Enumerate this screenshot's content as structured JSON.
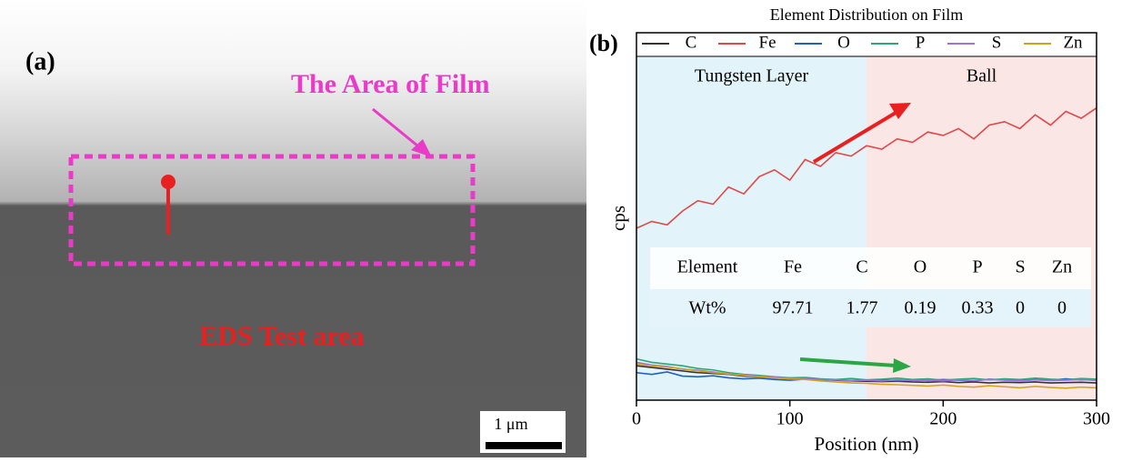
{
  "panel_a": {
    "label": "(a)",
    "film_label": "The Area of Film",
    "eds_label": "EDS Test area",
    "scale_bar": "1 μm"
  },
  "chart_data": {
    "type": "line",
    "panel_label": "(b)",
    "title": "Element Distribution on Film",
    "x_label": "Position (nm)",
    "y_label": "cps",
    "xlim": [
      0,
      300
    ],
    "ylim": [
      0,
      100
    ],
    "xticks": [
      0,
      100,
      200,
      300
    ],
    "regions": [
      {
        "label": "Tungsten Layer",
        "start": 0,
        "end": 150,
        "color": "#e2f3f9"
      },
      {
        "label": "Ball",
        "start": 150,
        "end": 300,
        "color": "#fbe6e6"
      }
    ],
    "x": [
      0,
      10,
      20,
      30,
      40,
      50,
      60,
      70,
      80,
      90,
      100,
      110,
      120,
      130,
      140,
      150,
      160,
      170,
      180,
      190,
      200,
      210,
      220,
      230,
      240,
      250,
      260,
      270,
      280,
      290,
      300
    ],
    "series": [
      {
        "name": "C",
        "color": "#333333",
        "values": [
          10,
          9.5,
          9,
          8.5,
          8,
          7.8,
          7.5,
          7,
          6.8,
          6.5,
          6.3,
          6.2,
          6,
          5.8,
          5.6,
          5.5,
          5.4,
          5.5,
          5.3,
          5.2,
          5.4,
          5.1,
          5.3,
          5,
          5.2,
          5.1,
          5.3,
          5,
          5.1,
          5.2,
          5
        ]
      },
      {
        "name": "Fe",
        "color": "#e04848",
        "values": [
          50,
          52,
          51,
          55,
          58,
          57,
          62,
          60,
          65,
          67,
          64,
          70,
          68,
          72,
          71,
          74,
          73,
          76,
          75,
          78,
          77,
          79,
          76,
          80,
          81,
          79,
          83,
          80,
          84,
          82,
          85
        ]
      },
      {
        "name": "O",
        "color": "#1f5fc8",
        "values": [
          8,
          7.5,
          8.2,
          7,
          6.8,
          7.1,
          6.5,
          6.2,
          6.4,
          6,
          5.8,
          6.1,
          5.9,
          6,
          5.7,
          5.8,
          6,
          5.6,
          5.9,
          5.7,
          6,
          5.8,
          5.6,
          6.1,
          5.9,
          5.7,
          6,
          5.8,
          6.2,
          5.9,
          6
        ]
      },
      {
        "name": "P",
        "color": "#2aa774",
        "values": [
          12,
          11,
          10.5,
          10,
          9.2,
          8.8,
          8,
          7.5,
          7.2,
          6.8,
          6.5,
          6.6,
          6.2,
          6,
          6.3,
          5.9,
          6.1,
          6.4,
          6,
          6.2,
          5.8,
          6.1,
          6.3,
          5.9,
          6.2,
          6,
          6.4,
          6.1,
          5.9,
          6.3,
          6.1
        ]
      },
      {
        "name": "S",
        "color": "#a070e0",
        "values": [
          11,
          10.2,
          9.8,
          9,
          8.7,
          8.2,
          7.6,
          7.3,
          7,
          6.7,
          6.4,
          6.2,
          6,
          5.9,
          5.7,
          5.8,
          5.6,
          5.9,
          5.7,
          5.8,
          5.6,
          5.9,
          5.7,
          6,
          5.8,
          5.6,
          5.9,
          5.7,
          5.8,
          6,
          5.7
        ]
      },
      {
        "name": "Zn",
        "color": "#d4a020",
        "values": [
          10.5,
          10,
          9.6,
          9.1,
          8.5,
          8,
          7.6,
          7.2,
          6.8,
          6.5,
          6.2,
          6,
          5.6,
          5.3,
          5,
          4.9,
          4.6,
          4.5,
          4.3,
          4.1,
          4.4,
          4,
          3.8,
          4.2,
          3.9,
          3.6,
          4,
          3.7,
          3.5,
          3.8,
          3.6
        ]
      }
    ],
    "table": {
      "rows": [
        [
          "Element",
          "Fe",
          "C",
          "O",
          "P",
          "S",
          "Zn"
        ],
        [
          "Wt%",
          "97.71",
          "1.77",
          "0.19",
          "0.33",
          "0",
          "0"
        ]
      ]
    }
  }
}
